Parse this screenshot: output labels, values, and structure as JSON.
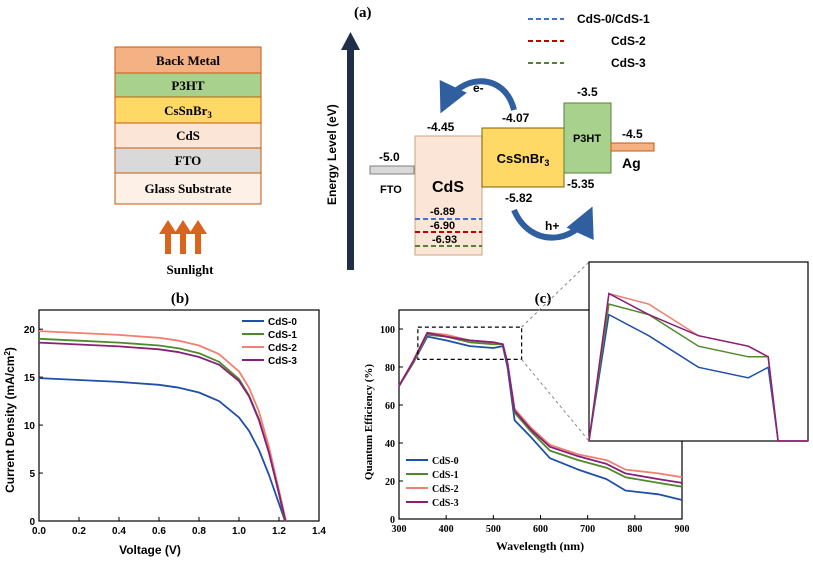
{
  "panel_a": {
    "label": "(a)",
    "stack_layers": [
      "Back Metal",
      "P3HT",
      "CsSnBr3",
      "CdS",
      "FTO",
      "Glass Substrate"
    ],
    "sunlight_label": "Sunlight",
    "energy_axis_label": "Energy Level (eV)",
    "legend": [
      {
        "name": "CdS-0/CdS-1",
        "color": "#4472c4"
      },
      {
        "name": "CdS-2",
        "color": "#c00000"
      },
      {
        "name": "CdS-3",
        "color": "#548235"
      }
    ],
    "materials": {
      "fto": {
        "name": "FTO",
        "level": "-5.0"
      },
      "cds": {
        "name": "CdS",
        "cb": "-4.45",
        "vb": [
          "-6.89",
          "-6.90",
          "-6.93"
        ]
      },
      "cssnbr3": {
        "name": "CsSnBr3",
        "cb": "-4.07",
        "vb": "-5.82"
      },
      "p3ht": {
        "name": "P3HT",
        "lumo": "-3.5",
        "homo": "-5.35"
      },
      "ag": {
        "name": "Ag",
        "level": "-4.5"
      }
    },
    "electron_label": "e-",
    "hole_label": "h+"
  },
  "chart_data": [
    {
      "type": "line",
      "panel": "(b)",
      "xlabel": "Voltage (V)",
      "ylabel": "Current Density (mA/cm2)",
      "xlim": [
        0,
        1.4
      ],
      "ylim": [
        0,
        22
      ],
      "xticks": [
        "0.0",
        "0.2",
        "0.4",
        "0.6",
        "0.8",
        "1.0",
        "1.2",
        "1.4"
      ],
      "yticks": [
        "0",
        "5",
        "10",
        "15",
        "20"
      ],
      "series": [
        {
          "name": "CdS-0",
          "color": "#1f4fa8",
          "jsc": 14.9,
          "voc": 1.23,
          "x": [
            0,
            0.2,
            0.4,
            0.6,
            0.7,
            0.8,
            0.9,
            1.0,
            1.05,
            1.1,
            1.15,
            1.2,
            1.23
          ],
          "y": [
            14.9,
            14.7,
            14.5,
            14.2,
            13.9,
            13.4,
            12.5,
            10.8,
            9.4,
            7.4,
            4.8,
            1.8,
            0
          ]
        },
        {
          "name": "CdS-1",
          "color": "#4e8a2a",
          "jsc": 19.0,
          "voc": 1.23,
          "x": [
            0,
            0.2,
            0.4,
            0.6,
            0.7,
            0.8,
            0.9,
            1.0,
            1.05,
            1.1,
            1.15,
            1.2,
            1.23
          ],
          "y": [
            19.0,
            18.8,
            18.6,
            18.3,
            18.0,
            17.5,
            16.6,
            14.8,
            13.1,
            10.6,
            7.1,
            2.8,
            0
          ]
        },
        {
          "name": "CdS-2",
          "color": "#f08070",
          "jsc": 19.8,
          "voc": 1.235,
          "x": [
            0,
            0.2,
            0.4,
            0.6,
            0.7,
            0.8,
            0.9,
            1.0,
            1.05,
            1.1,
            1.15,
            1.2,
            1.235
          ],
          "y": [
            19.8,
            19.6,
            19.4,
            19.1,
            18.8,
            18.3,
            17.4,
            15.6,
            13.9,
            11.4,
            7.7,
            3.2,
            0
          ]
        },
        {
          "name": "CdS-3",
          "color": "#8a1f7a",
          "jsc": 18.6,
          "voc": 1.232,
          "x": [
            0,
            0.2,
            0.4,
            0.6,
            0.7,
            0.8,
            0.9,
            1.0,
            1.05,
            1.1,
            1.15,
            1.2,
            1.232
          ],
          "y": [
            18.6,
            18.4,
            18.2,
            17.9,
            17.6,
            17.1,
            16.3,
            14.6,
            13.0,
            10.5,
            7.1,
            2.9,
            0
          ]
        }
      ]
    },
    {
      "type": "line",
      "panel": "(c)",
      "xlabel": "Wavelength (nm)",
      "ylabel": "Quantum Efficiency (%)",
      "xlim": [
        300,
        900
      ],
      "ylim": [
        0,
        110
      ],
      "xticks": [
        "300",
        "400",
        "500",
        "600",
        "700",
        "800",
        "900"
      ],
      "yticks": [
        "0",
        "20",
        "40",
        "60",
        "80",
        "100"
      ],
      "series": [
        {
          "name": "CdS-0",
          "color": "#1f4fa8",
          "x": [
            300,
            330,
            360,
            400,
            450,
            500,
            520,
            530,
            545,
            580,
            620,
            680,
            740,
            780,
            850,
            900
          ],
          "y": [
            70,
            82,
            96,
            94,
            91,
            90,
            91,
            80,
            52,
            43,
            32,
            26,
            21,
            15,
            13,
            10
          ]
        },
        {
          "name": "CdS-1",
          "color": "#4e8a2a",
          "x": [
            300,
            330,
            360,
            400,
            450,
            500,
            520,
            530,
            545,
            580,
            620,
            680,
            740,
            780,
            850,
            900
          ],
          "y": [
            70,
            82,
            97,
            96,
            93,
            92,
            92,
            82,
            56,
            46,
            36,
            31,
            27,
            22,
            19,
            17
          ]
        },
        {
          "name": "CdS-2",
          "color": "#f08070",
          "x": [
            300,
            330,
            360,
            400,
            450,
            500,
            520,
            530,
            545,
            580,
            620,
            680,
            740,
            780,
            850,
            900
          ],
          "y": [
            70,
            83,
            98,
            97,
            94,
            93,
            92,
            82,
            58,
            48,
            39,
            34,
            31,
            26,
            24,
            22
          ]
        },
        {
          "name": "CdS-3",
          "color": "#8a1f7a",
          "x": [
            300,
            330,
            360,
            400,
            450,
            500,
            520,
            530,
            545,
            580,
            620,
            680,
            740,
            780,
            850,
            900
          ],
          "y": [
            70,
            83,
            98,
            96,
            94,
            93,
            92,
            82,
            57,
            47,
            38,
            33,
            29,
            24,
            21,
            19
          ]
        }
      ],
      "inset": {
        "xlim": [
          340,
          560
        ],
        "ylim": [
          84,
          101
        ]
      }
    }
  ]
}
